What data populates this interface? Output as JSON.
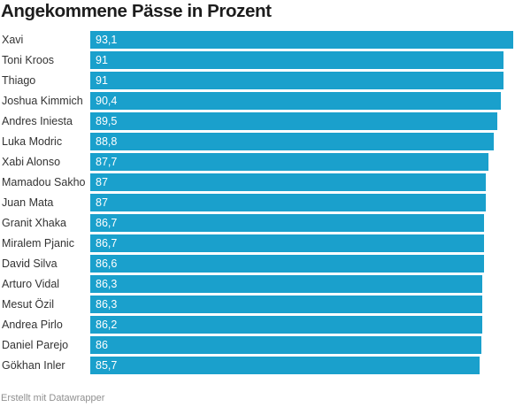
{
  "title": "Angekommene Pässe in Prozent",
  "footer": "Erstellt mit Datawrapper",
  "colors": {
    "bar": "#1aa0cc",
    "bar_label": "#ffffff",
    "title": "#1d1d1d"
  },
  "chart_data": {
    "type": "bar",
    "orientation": "horizontal",
    "title": "Angekommene Pässe in Prozent",
    "categories": [
      "Xavi",
      "Toni Kroos",
      "Thiago",
      "Joshua Kimmich",
      "Andres Iniesta",
      "Luka Modric",
      "Xabi Alonso",
      "Mamadou Sakho",
      "Juan Mata",
      "Granit Xhaka",
      "Miralem Pjanic",
      "David Silva",
      "Arturo Vidal",
      "Mesut Özil",
      "Andrea Pirlo",
      "Daniel Parejo",
      "Gökhan Inler"
    ],
    "values": [
      93.1,
      91,
      91,
      90.4,
      89.5,
      88.8,
      87.7,
      87,
      87,
      86.7,
      86.7,
      86.6,
      86.3,
      86.3,
      86.2,
      86,
      85.7
    ],
    "value_labels": [
      "93,1",
      "91",
      "91",
      "90,4",
      "89,5",
      "88,8",
      "87,7",
      "87",
      "87",
      "86,7",
      "86,7",
      "86,6",
      "86,3",
      "86,3",
      "86,2",
      "86",
      "85,7"
    ],
    "xlim": [
      0,
      93.1
    ],
    "grid": false,
    "legend": "none"
  }
}
